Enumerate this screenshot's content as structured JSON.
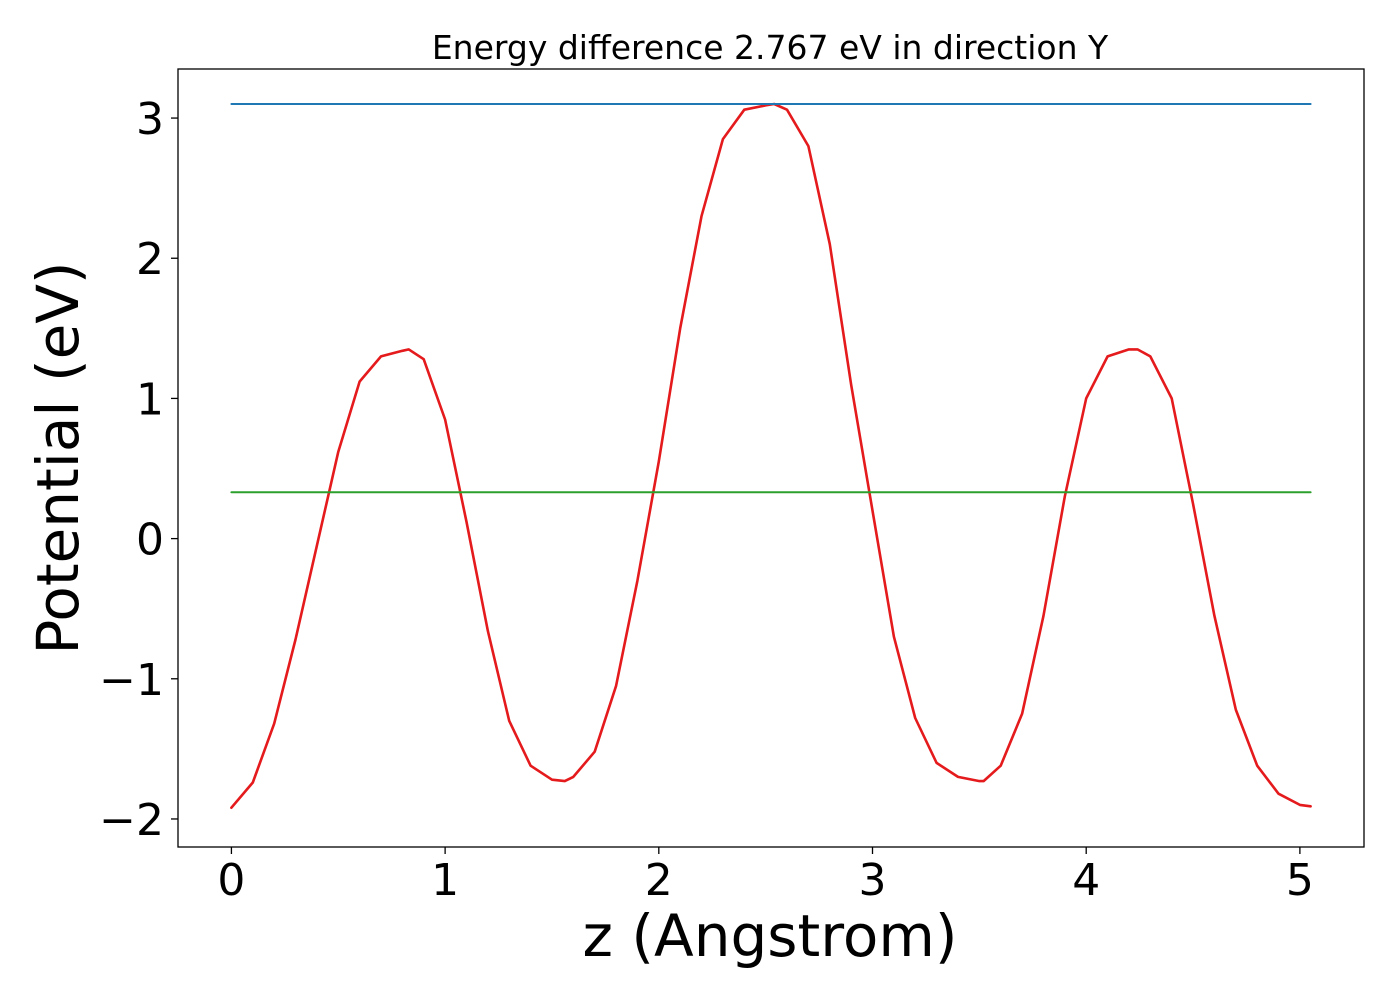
{
  "chart_data": {
    "type": "line",
    "title": "Energy difference 2.767 eV in direction Y",
    "xlabel": "z (Angstrom)",
    "ylabel": "Potential (eV)",
    "xlim": [
      -0.25,
      5.3
    ],
    "ylim": [
      -2.2,
      3.35
    ],
    "xticks": [
      0,
      1,
      2,
      3,
      4,
      5
    ],
    "xtick_labels": [
      "0",
      "1",
      "2",
      "3",
      "4",
      "5"
    ],
    "yticks": [
      -2,
      -1,
      0,
      1,
      2,
      3
    ],
    "ytick_labels": [
      "−2",
      "−1",
      "0",
      "1",
      "2",
      "3"
    ],
    "grid": false,
    "series": [
      {
        "color": "#e41a1c",
        "x": [
          0.0,
          0.1,
          0.2,
          0.3,
          0.4,
          0.5,
          0.6,
          0.7,
          0.8,
          0.83,
          0.9,
          1.0,
          1.1,
          1.2,
          1.3,
          1.4,
          1.5,
          1.56,
          1.6,
          1.7,
          1.8,
          1.9,
          2.0,
          2.1,
          2.2,
          2.3,
          2.4,
          2.5,
          2.54,
          2.6,
          2.7,
          2.8,
          2.9,
          3.0,
          3.1,
          3.2,
          3.3,
          3.4,
          3.5,
          3.52,
          3.6,
          3.7,
          3.8,
          3.9,
          4.0,
          4.1,
          4.2,
          4.24,
          4.3,
          4.4,
          4.5,
          4.6,
          4.7,
          4.8,
          4.9,
          5.0,
          5.05
        ],
        "y": [
          -1.92,
          -1.74,
          -1.32,
          -0.72,
          -0.05,
          0.62,
          1.12,
          1.3,
          1.34,
          1.35,
          1.28,
          0.85,
          0.12,
          -0.66,
          -1.3,
          -1.62,
          -1.72,
          -1.73,
          -1.7,
          -1.52,
          -1.05,
          -0.3,
          0.55,
          1.5,
          2.3,
          2.85,
          3.06,
          3.09,
          3.1,
          3.06,
          2.8,
          2.1,
          1.1,
          0.2,
          -0.7,
          -1.28,
          -1.6,
          -1.7,
          -1.73,
          -1.73,
          -1.62,
          -1.25,
          -0.55,
          0.3,
          1.0,
          1.3,
          1.35,
          1.35,
          1.3,
          1.0,
          0.25,
          -0.55,
          -1.22,
          -1.62,
          -1.82,
          -1.9,
          -1.91
        ]
      },
      {
        "color": "#1f77b4",
        "x": [
          0.0,
          5.05
        ],
        "y": [
          3.1,
          3.1
        ]
      },
      {
        "color": "#2ca02c",
        "x": [
          0.0,
          5.05
        ],
        "y": [
          0.33,
          0.33
        ]
      }
    ]
  }
}
